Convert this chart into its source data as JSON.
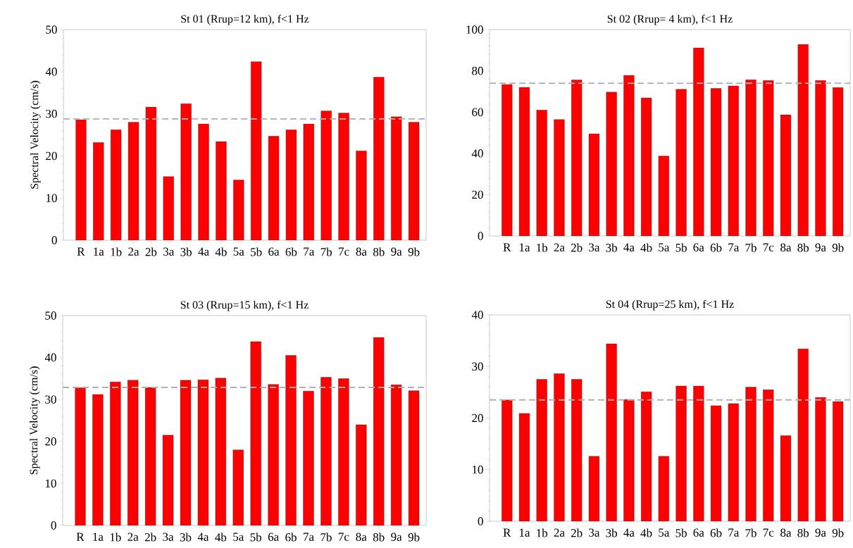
{
  "chart_data": [
    {
      "type": "bar",
      "title": "St 01 (Rrup=12 km), f<1 Hz",
      "ylabel": "Spectral Velocity (cm/s)",
      "categories": [
        "R",
        "1a",
        "1b",
        "2a",
        "2b",
        "3a",
        "3b",
        "4a",
        "4b",
        "5a",
        "5b",
        "6a",
        "6b",
        "7a",
        "7b",
        "7c",
        "8a",
        "8b",
        "9a",
        "9b"
      ],
      "values": [
        28.6,
        23.2,
        26.2,
        28.0,
        31.6,
        15.1,
        32.4,
        27.6,
        23.4,
        14.3,
        42.4,
        24.7,
        26.2,
        27.6,
        30.7,
        30.2,
        21.2,
        38.7,
        29.3,
        28.0
      ],
      "color": "#ff0000",
      "ylim": [
        0,
        50
      ],
      "yticks": [
        0,
        10,
        20,
        30,
        40,
        50
      ],
      "ref_lines": [
        {
          "axis": "y",
          "value": 28.8,
          "color": "#b0b0b0",
          "line_style": "dashed"
        }
      ]
    },
    {
      "type": "bar",
      "title": "St 02 (Rrup= 4 km), f<1 Hz",
      "categories": [
        "R",
        "1a",
        "1b",
        "2a",
        "2b",
        "3a",
        "3b",
        "4a",
        "4b",
        "5a",
        "5b",
        "6a",
        "6b",
        "7a",
        "7b",
        "7c",
        "8a",
        "8b",
        "9a",
        "9b"
      ],
      "values": [
        73.4,
        72.0,
        61.0,
        56.4,
        75.6,
        49.5,
        69.7,
        77.8,
        66.9,
        38.7,
        71.1,
        91.1,
        71.5,
        72.7,
        75.7,
        75.3,
        58.7,
        92.8,
        75.3,
        71.9
      ],
      "color": "#ff0000",
      "ylim": [
        0,
        100
      ],
      "yticks": [
        0,
        20,
        40,
        60,
        80,
        100
      ],
      "ref_lines": [
        {
          "axis": "y",
          "value": 74.0,
          "color": "#b0b0b0",
          "line_style": "dashed"
        }
      ]
    },
    {
      "type": "bar",
      "title": "St 03 (Rrup=15 km), f<1 Hz",
      "ylabel": "Spectral Velocity (cm/s)",
      "categories": [
        "R",
        "1a",
        "1b",
        "2a",
        "2b",
        "3a",
        "3b",
        "4a",
        "4b",
        "5a",
        "5b",
        "6a",
        "6b",
        "7a",
        "7b",
        "7c",
        "8a",
        "8b",
        "9a",
        "9b"
      ],
      "values": [
        32.8,
        31.2,
        34.2,
        34.6,
        32.9,
        21.5,
        34.6,
        34.7,
        35.1,
        18.0,
        43.8,
        33.6,
        40.5,
        32.0,
        35.3,
        35.0,
        24.0,
        44.8,
        33.5,
        32.1
      ],
      "color": "#ff0000",
      "ylim": [
        0,
        50
      ],
      "yticks": [
        0,
        10,
        20,
        30,
        40,
        50
      ],
      "ref_lines": [
        {
          "axis": "y",
          "value": 32.9,
          "color": "#b0b0b0",
          "line_style": "dashed"
        }
      ]
    },
    {
      "type": "bar",
      "title": "St 04 (Rrup=25 km), f<1 Hz",
      "categories": [
        "R",
        "1a",
        "1b",
        "2a",
        "2b",
        "3a",
        "3b",
        "4a",
        "4b",
        "5a",
        "5b",
        "6a",
        "6b",
        "7a",
        "7b",
        "7c",
        "8a",
        "8b",
        "9a",
        "9b"
      ],
      "values": [
        23.5,
        20.9,
        27.5,
        28.6,
        27.5,
        12.6,
        34.4,
        23.6,
        25.1,
        12.6,
        26.2,
        26.2,
        22.4,
        22.8,
        26.0,
        25.5,
        16.6,
        33.4,
        24.0,
        23.2
      ],
      "color": "#ff0000",
      "ylim": [
        0,
        40
      ],
      "yticks": [
        0,
        10,
        20,
        30,
        40
      ],
      "ref_lines": [
        {
          "axis": "y",
          "value": 23.5,
          "color": "#b0b0b0",
          "line_style": "dashed"
        }
      ]
    }
  ]
}
